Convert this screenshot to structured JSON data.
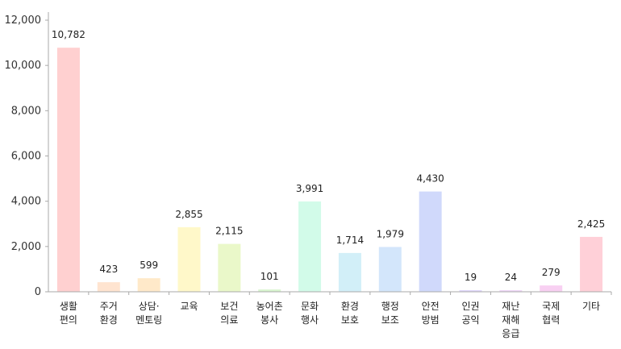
{
  "chart_data": {
    "type": "bar",
    "title": "",
    "xlabel": "",
    "ylabel": "",
    "ylim": [
      0,
      12000
    ],
    "yticks": [
      "0",
      "2,000",
      "4,000",
      "6,000",
      "8,000",
      "10,000",
      "12,000"
    ],
    "ytick_values": [
      0,
      2000,
      4000,
      6000,
      8000,
      10000,
      12000
    ],
    "grid": false,
    "legend": "none",
    "categories": [
      [
        "생활",
        "편의"
      ],
      [
        "주거",
        "환경"
      ],
      [
        "상담·",
        "멘토링"
      ],
      [
        "교육"
      ],
      [
        "보건",
        "의료"
      ],
      [
        "농어촌",
        "봉사"
      ],
      [
        "문화",
        "행사"
      ],
      [
        "환경",
        "보호"
      ],
      [
        "행정",
        "보조"
      ],
      [
        "안전",
        "방범"
      ],
      [
        "인권",
        "공익"
      ],
      [
        "재난",
        "재해",
        "응급"
      ],
      [
        "국제",
        "협력"
      ],
      [
        "기타"
      ]
    ],
    "values": [
      10782,
      423,
      599,
      2855,
      2115,
      101,
      3991,
      1714,
      1979,
      4430,
      19,
      24,
      279,
      2425
    ],
    "value_labels": [
      "10,782",
      "423",
      "599",
      "2,855",
      "2,115",
      "101",
      "3,991",
      "1,714",
      "1,979",
      "4,430",
      "19",
      "24",
      "279",
      "2,425"
    ],
    "colors": [
      "#ffd0d0",
      "#ffe4d0",
      "#ffe9c9",
      "#fff8c9",
      "#eaf8c9",
      "#d8f5cf",
      "#d2fbe9",
      "#d2eff8",
      "#d3e6fb",
      "#d0d9fb",
      "#e0d8fb",
      "#f0d8f8",
      "#f8d0f2",
      "#ffd0d8"
    ],
    "axis_color": "#aaaaaa"
  }
}
